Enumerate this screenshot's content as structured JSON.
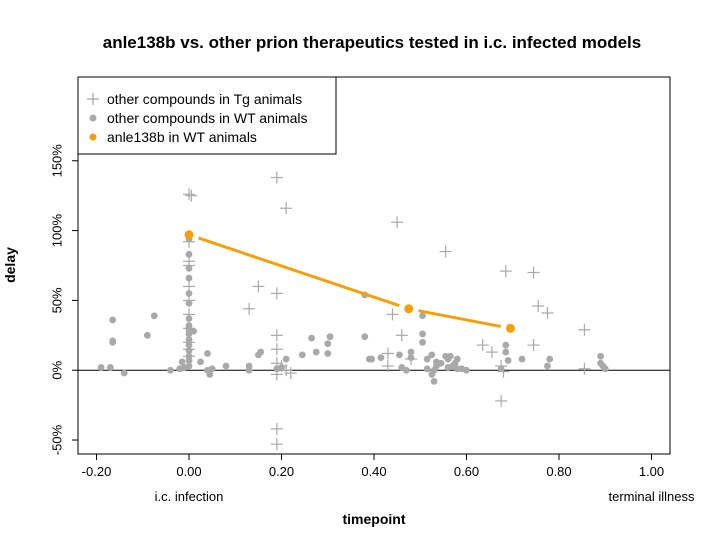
{
  "chart_data": {
    "type": "scatter",
    "title": "anle138b vs. other prion therapeutics tested in i.c. infected models",
    "xlabel": "timepoint",
    "ylabel": "delay",
    "xlim": [
      -0.24,
      1.04
    ],
    "ylim": [
      -60,
      210
    ],
    "x_ticks": [
      -0.2,
      0,
      0.2,
      0.4,
      0.6,
      0.8,
      1.0
    ],
    "x_tick_labels": [
      "-0.20",
      "0.00",
      "0.20",
      "0.40",
      "0.60",
      "0.80",
      "1.00"
    ],
    "x_annotations": [
      {
        "x": 0.0,
        "label": "i.c. infection"
      },
      {
        "x": 1.0,
        "label": "terminal illness"
      }
    ],
    "y_ticks": [
      -50,
      0,
      50,
      100,
      150
    ],
    "y_tick_labels": [
      "-50%",
      "0%",
      "50%",
      "100%",
      "150%"
    ],
    "reference_line_y": 0,
    "legend_position": "top-left",
    "grid": false,
    "series": [
      {
        "name": "other compounds in Tg animals",
        "marker": "plus",
        "color": "#a9a9a9",
        "points": [
          [
            0.0,
            126
          ],
          [
            0.005,
            125
          ],
          [
            0.0,
            92
          ],
          [
            0.0,
            78
          ],
          [
            0.0,
            75
          ],
          [
            0.0,
            60
          ],
          [
            0.0,
            50
          ],
          [
            0.0,
            40
          ],
          [
            0.0,
            30
          ],
          [
            0.0,
            20
          ],
          [
            0.0,
            15
          ],
          [
            0.0,
            10
          ],
          [
            0.0,
            178
          ],
          [
            0.15,
            160
          ],
          [
            0.19,
            138
          ],
          [
            0.21,
            116
          ],
          [
            0.19,
            55
          ],
          [
            0.15,
            60
          ],
          [
            0.13,
            44
          ],
          [
            0.19,
            25
          ],
          [
            0.19,
            15
          ],
          [
            0.19,
            5
          ],
          [
            0.2,
            3
          ],
          [
            0.21,
            0
          ],
          [
            0.22,
            -2
          ],
          [
            0.19,
            -3
          ],
          [
            0.19,
            -42
          ],
          [
            0.19,
            -53
          ],
          [
            0.45,
            106
          ],
          [
            0.555,
            85
          ],
          [
            0.44,
            40
          ],
          [
            0.46,
            25
          ],
          [
            0.43,
            12
          ],
          [
            0.43,
            3
          ],
          [
            0.48,
            8
          ],
          [
            0.685,
            71
          ],
          [
            0.745,
            70
          ],
          [
            0.755,
            46
          ],
          [
            0.775,
            41
          ],
          [
            0.745,
            18
          ],
          [
            0.855,
            29
          ],
          [
            0.635,
            18
          ],
          [
            0.655,
            13
          ],
          [
            0.675,
            3
          ],
          [
            0.68,
            -1
          ],
          [
            0.675,
            -22
          ],
          [
            0.855,
            1
          ]
        ]
      },
      {
        "name": "other compounds in WT animals",
        "marker": "dot",
        "color": "#a9a9a9",
        "points": [
          [
            -0.19,
            2
          ],
          [
            -0.17,
            2
          ],
          [
            -0.165,
            36
          ],
          [
            -0.165,
            20
          ],
          [
            -0.165,
            21
          ],
          [
            -0.14,
            -2
          ],
          [
            -0.09,
            25
          ],
          [
            -0.075,
            39
          ],
          [
            -0.04,
            0
          ],
          [
            -0.02,
            1
          ],
          [
            -0.015,
            6
          ],
          [
            -0.01,
            2
          ],
          [
            0.0,
            94
          ],
          [
            0.0,
            83
          ],
          [
            0.0,
            73
          ],
          [
            0.0,
            66
          ],
          [
            0.0,
            55
          ],
          [
            0.0,
            48
          ],
          [
            0.0,
            37
          ],
          [
            0.0,
            32
          ],
          [
            0.0,
            29
          ],
          [
            0.0,
            26
          ],
          [
            0.0,
            22
          ],
          [
            0.0,
            18
          ],
          [
            0.0,
            14
          ],
          [
            0.0,
            10
          ],
          [
            0.0,
            7
          ],
          [
            0.0,
            3
          ],
          [
            0.01,
            28
          ],
          [
            0.025,
            6
          ],
          [
            0.04,
            0
          ],
          [
            0.04,
            12
          ],
          [
            0.045,
            -3
          ],
          [
            0.05,
            1
          ],
          [
            0.08,
            3
          ],
          [
            0.13,
            0
          ],
          [
            0.13,
            3
          ],
          [
            0.15,
            11
          ],
          [
            0.155,
            13
          ],
          [
            0.19,
            1
          ],
          [
            0.2,
            2
          ],
          [
            0.21,
            8
          ],
          [
            0.245,
            11
          ],
          [
            0.265,
            23
          ],
          [
            0.275,
            13
          ],
          [
            0.3,
            12
          ],
          [
            0.3,
            19
          ],
          [
            0.305,
            24
          ],
          [
            0.38,
            24
          ],
          [
            0.38,
            54
          ],
          [
            0.39,
            8
          ],
          [
            0.395,
            8
          ],
          [
            0.415,
            9
          ],
          [
            0.455,
            11
          ],
          [
            0.46,
            2
          ],
          [
            0.47,
            0
          ],
          [
            0.48,
            9
          ],
          [
            0.48,
            13
          ],
          [
            0.505,
            26
          ],
          [
            0.505,
            20
          ],
          [
            0.505,
            39
          ],
          [
            0.515,
            8
          ],
          [
            0.525,
            11
          ],
          [
            0.535,
            3
          ],
          [
            0.545,
            5
          ],
          [
            0.555,
            10
          ],
          [
            0.56,
            8
          ],
          [
            0.565,
            10
          ],
          [
            0.575,
            5
          ],
          [
            0.58,
            8
          ],
          [
            0.59,
            1
          ],
          [
            0.6,
            0
          ],
          [
            0.515,
            1
          ],
          [
            0.525,
            -3
          ],
          [
            0.53,
            -8
          ],
          [
            0.535,
            6
          ],
          [
            0.53,
            0
          ],
          [
            0.56,
            2
          ],
          [
            0.57,
            3
          ],
          [
            0.58,
            1
          ],
          [
            0.675,
            1
          ],
          [
            0.685,
            18
          ],
          [
            0.685,
            13
          ],
          [
            0.69,
            7
          ],
          [
            0.72,
            8
          ],
          [
            0.775,
            3
          ],
          [
            0.78,
            8
          ],
          [
            0.89,
            10
          ],
          [
            0.89,
            5
          ],
          [
            0.895,
            3
          ],
          [
            0.9,
            1
          ]
        ]
      },
      {
        "name": "anle138b in WT animals",
        "marker": "dot-line",
        "color": "#f5a00a",
        "points": [
          [
            0.0,
            97
          ],
          [
            0.475,
            44
          ],
          [
            0.695,
            30
          ]
        ]
      }
    ]
  }
}
